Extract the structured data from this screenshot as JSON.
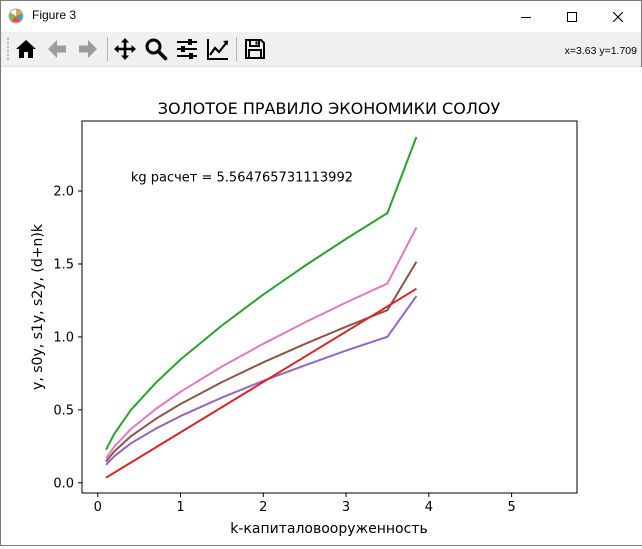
{
  "window": {
    "title": "Figure 3",
    "icons": {
      "app": "matplotlib-icon",
      "minimize": "minimize-icon",
      "maximize": "maximize-icon",
      "close": "close-icon"
    }
  },
  "toolbar": {
    "buttons": [
      {
        "name": "home-button",
        "icon": "home-icon"
      },
      {
        "name": "back-button",
        "icon": "arrow-left-icon"
      },
      {
        "name": "forward-button",
        "icon": "arrow-right-icon"
      },
      {
        "name": "pan-button",
        "icon": "move-icon"
      },
      {
        "name": "zoom-button",
        "icon": "magnifier-icon"
      },
      {
        "name": "configure-subplots-button",
        "icon": "sliders-icon"
      },
      {
        "name": "edit-axis-button",
        "icon": "line-chart-icon"
      },
      {
        "name": "save-button",
        "icon": "floppy-disk-icon"
      }
    ],
    "coords": "x=3.63 y=1.709"
  },
  "chart_data": {
    "type": "line",
    "title": "ЗОЛОТОЕ ПРАВИЛО ЭКОНОМИКИ СОЛОУ",
    "xlabel": "k-капиталовооруженность",
    "ylabel": "y, s0y, s1y, s2y, (d+n)k",
    "xlim": [
      -0.19,
      5.79
    ],
    "ylim": [
      -0.07,
      2.48
    ],
    "xticks": [
      0,
      1,
      2,
      3,
      4,
      5
    ],
    "yticks": [
      0.0,
      0.5,
      1.0,
      1.5,
      2.0
    ],
    "xtick_labels": [
      "0",
      "1",
      "2",
      "3",
      "4",
      "5"
    ],
    "ytick_labels": [
      "0.0",
      "0.5",
      "1.0",
      "1.5",
      "2.0"
    ],
    "grid": false,
    "annotation": {
      "text": "kg расчет =  5.564765731113992",
      "x": 0.4,
      "y": 2.1
    },
    "series": [
      {
        "color": "#2ca02c",
        "x": [
          0.1,
          0.2,
          0.4,
          0.7,
          1.0,
          1.5,
          2.0,
          2.5,
          3.0,
          3.5,
          3.85
        ],
        "y": [
          0.227,
          0.336,
          0.498,
          0.685,
          0.845,
          1.078,
          1.29,
          1.487,
          1.672,
          1.849,
          2.37
        ]
      },
      {
        "color": "#e377c2",
        "x": [
          0.1,
          0.2,
          0.4,
          0.7,
          1.0,
          1.5,
          2.0,
          2.5,
          3.0,
          3.5,
          3.85
        ],
        "y": [
          0.168,
          0.248,
          0.368,
          0.506,
          0.624,
          0.797,
          0.953,
          1.099,
          1.236,
          1.366,
          1.75
        ]
      },
      {
        "color": "#8c564b",
        "x": [
          0.1,
          0.2,
          0.4,
          0.7,
          1.0,
          1.5,
          2.0,
          2.5,
          3.0,
          3.5,
          3.85
        ],
        "y": [
          0.145,
          0.215,
          0.319,
          0.438,
          0.54,
          0.69,
          0.826,
          0.951,
          1.07,
          1.183,
          1.515
        ]
      },
      {
        "color": "#9467bd",
        "x": [
          0.1,
          0.2,
          0.4,
          0.7,
          1.0,
          1.5,
          2.0,
          2.5,
          3.0,
          3.5,
          3.85
        ],
        "y": [
          0.123,
          0.182,
          0.27,
          0.371,
          0.457,
          0.584,
          0.699,
          0.805,
          0.906,
          1.001,
          1.28
        ]
      },
      {
        "color": "#d62728",
        "x": [
          0.1,
          3.85
        ],
        "y": [
          0.035,
          1.33
        ]
      }
    ]
  }
}
